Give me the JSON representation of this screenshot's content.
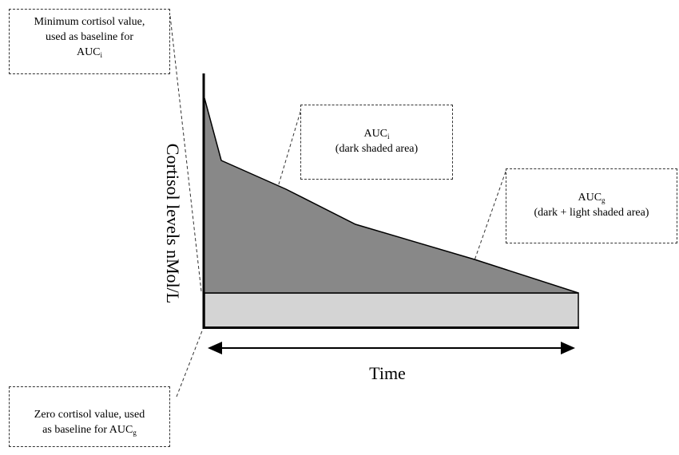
{
  "callouts": {
    "min_baseline": {
      "line1": "Minimum cortisol value,",
      "line2": "used as baseline for",
      "line3": "AUC",
      "line3_sub": "i"
    },
    "auc_i": {
      "title": "AUC",
      "title_sub": "i",
      "desc": "(dark shaded area)"
    },
    "auc_g": {
      "title": "AUC",
      "title_sub": "g",
      "desc": "(dark + light shaded area)"
    },
    "zero_baseline": {
      "line1": "Zero cortisol value, used",
      "line2": "as baseline for AUC",
      "line2_sub": "g"
    }
  },
  "axes": {
    "y_label": "Cortisol levels nMol/L",
    "x_label": "Time"
  },
  "colors": {
    "dark_fill": "#888888",
    "light_fill": "#d4d4d4",
    "line": "#000000"
  }
}
